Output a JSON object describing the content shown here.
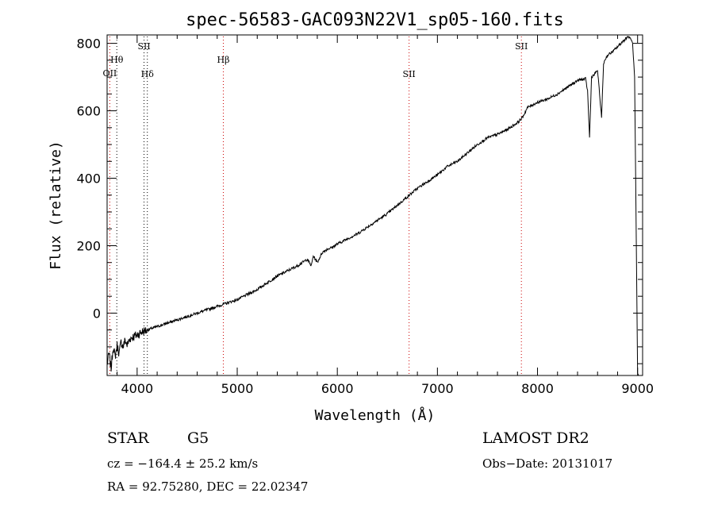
{
  "chart_data": {
    "type": "line",
    "title": "spec-56583-GAC093N22V1_sp05-160.fits",
    "xlabel": "Wavelength (Å)",
    "ylabel": "Flux (relative)",
    "xlim": [
      3700,
      9050
    ],
    "ylim": [
      -185,
      825
    ],
    "xticks": [
      4000,
      5000,
      6000,
      7000,
      8000,
      9000
    ],
    "xtick_labels": [
      "4000",
      "5000",
      "6000",
      "7000",
      "8000",
      "9000"
    ],
    "yticks": [
      0,
      200,
      400,
      600,
      800
    ],
    "ytick_labels": [
      "0",
      "200",
      "400",
      "600",
      "800"
    ],
    "grid": false,
    "series": [
      {
        "x": [
          3700,
          3720,
          3740,
          3760,
          3780,
          3800,
          3820,
          3840,
          3860,
          3880,
          3900,
          3930,
          3960,
          4000,
          4050,
          4100,
          4150,
          4200,
          4300,
          4400,
          4500,
          4600,
          4700,
          4800,
          4900,
          5000,
          5100,
          5200,
          5300,
          5400,
          5500,
          5600,
          5700,
          5740,
          5760,
          5800,
          5850,
          5900,
          5950,
          6000,
          6100,
          6200,
          6300,
          6400,
          6500,
          6600,
          6700,
          6800,
          6900,
          7000,
          7100,
          7200,
          7300,
          7400,
          7500,
          7600,
          7700,
          7800,
          7850,
          7900,
          8000,
          8100,
          8200,
          8300,
          8400,
          8480,
          8500,
          8520,
          8540,
          8560,
          8600,
          8640,
          8660,
          8680,
          8700,
          8750,
          8800,
          8850,
          8900,
          8930,
          8950,
          8970,
          8980,
          8990,
          9000,
          9010
        ],
        "y": [
          -150,
          -120,
          -165,
          -100,
          -130,
          -95,
          -120,
          -85,
          -100,
          -80,
          -95,
          -75,
          -70,
          -65,
          -55,
          -50,
          -45,
          -40,
          -30,
          -20,
          -10,
          0,
          10,
          20,
          30,
          40,
          55,
          70,
          90,
          110,
          125,
          140,
          160,
          140,
          170,
          150,
          180,
          190,
          195,
          205,
          220,
          235,
          255,
          275,
          295,
          320,
          345,
          370,
          390,
          410,
          435,
          450,
          475,
          500,
          520,
          530,
          545,
          565,
          580,
          610,
          625,
          635,
          650,
          670,
          690,
          695,
          660,
          520,
          700,
          705,
          720,
          580,
          740,
          755,
          765,
          775,
          790,
          805,
          820,
          815,
          800,
          700,
          420,
          120,
          -180,
          -185
        ],
        "stroke": "#000000"
      }
    ],
    "lines": [
      {
        "label": "OII",
        "x": 3727,
        "color": "#cc0000"
      },
      {
        "label": "Hθ",
        "x": 3797,
        "color": "#000000"
      },
      {
        "label": "SII",
        "x": 4069,
        "color": "#000000"
      },
      {
        "label": "Hδ",
        "x": 4102,
        "color": "#000000"
      },
      {
        "label": "Hβ",
        "x": 4861,
        "color": "#cc0000"
      },
      {
        "label": "SII",
        "x": 6717,
        "color": "#cc0000"
      },
      {
        "label": "SII",
        "x": 7839,
        "color": "#cc0000"
      }
    ]
  },
  "info": {
    "object_class": "STAR",
    "subclass": "G5",
    "survey": "LAMOST DR2",
    "cz": "cz = −164.4 ± 25.2 km/s",
    "obs_date": "Obs−Date: 20131017",
    "coords": "RA =  92.75280, DEC =  22.02347"
  }
}
